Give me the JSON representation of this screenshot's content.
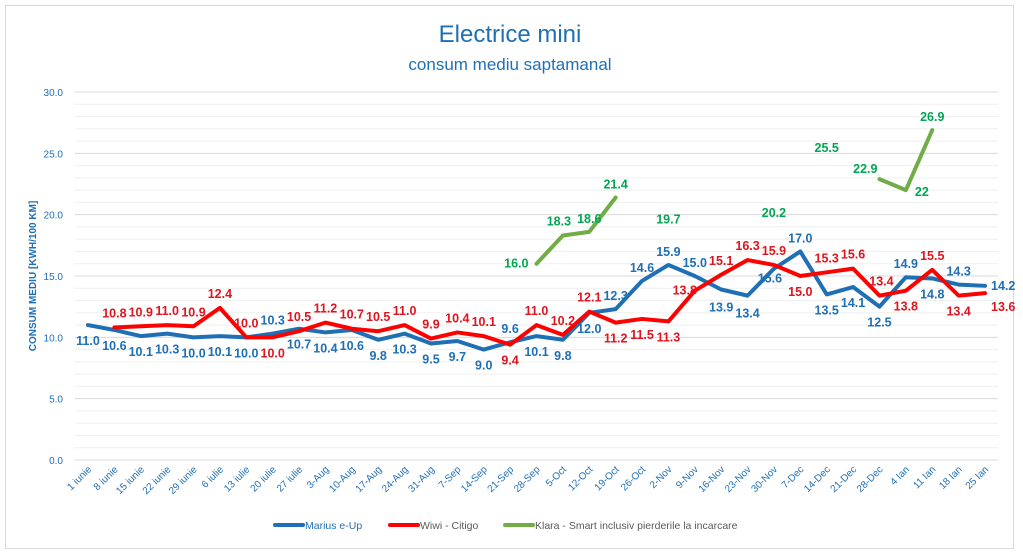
{
  "chart_data": {
    "type": "line",
    "title": "Electrice mini",
    "subtitle": "consum mediu saptamanal",
    "xlabel": "",
    "ylabel": "CONSUM MEDIU [KWH/100 KM]",
    "ylim": [
      0,
      30
    ],
    "yticks": [
      "0.0",
      "5.0",
      "10.0",
      "15.0",
      "20.0",
      "25.0",
      "30.0"
    ],
    "ytick_values": [
      0,
      5,
      10,
      15,
      20,
      25,
      30
    ],
    "grid": "major every 5, minor every 1",
    "legend_position": "bottom",
    "categories": [
      "1 iunie",
      "8 iunie",
      "15 iunie",
      "22 iunie",
      "29 iunie",
      "6 iulie",
      "13 iulie",
      "20 iulie",
      "27 iulie",
      "3-Aug",
      "10-Aug",
      "17-Aug",
      "24-Aug",
      "31-Aug",
      "7-Sep",
      "14-Sep",
      "21-Sep",
      "28-Sep",
      "5-Oct",
      "12-Oct",
      "19-Oct",
      "26-Oct",
      "2-Nov",
      "9-Nov",
      "16-Nov",
      "23-Nov",
      "30-Nov",
      "7-Dec",
      "14-Dec",
      "21-Dec",
      "28-Dec",
      "4 Ian",
      "11 Ian",
      "18 Ian",
      "25 Ian"
    ],
    "series": [
      {
        "name": "Marius e-Up",
        "color": "#1f6fb5",
        "label_color": "#1f6fb5",
        "values": [
          11.0,
          10.6,
          10.1,
          10.3,
          10.0,
          10.1,
          10.0,
          10.3,
          10.7,
          10.4,
          10.6,
          9.8,
          10.3,
          9.5,
          9.7,
          9.0,
          9.6,
          10.1,
          9.8,
          12.0,
          12.3,
          14.6,
          15.9,
          15.0,
          13.9,
          13.4,
          15.6,
          17.0,
          13.5,
          14.1,
          12.5,
          14.9,
          14.8,
          14.3,
          14.2
        ],
        "labels": [
          "11.0",
          "10.6",
          "10.1",
          "10.3",
          "10.0",
          "10.1",
          "10.0",
          "10.3",
          "10.7",
          "10.4",
          "10.6",
          "9.8",
          "10.3",
          "9.5",
          "9.7",
          "9.0",
          "9.6",
          "10.1",
          "9.8",
          "12.0",
          "12.3",
          "14.6",
          "15.9",
          "15.0",
          "13.9",
          "13.4",
          "15.6",
          "17.0",
          "13.5",
          "14.1",
          "12.5",
          "14.9",
          "14.8",
          "14.3",
          "14.2"
        ]
      },
      {
        "name": "Wiwi - Citigo",
        "color": "#ff0000",
        "label_color": "#e0141e",
        "values": [
          null,
          10.8,
          10.9,
          11.0,
          10.9,
          12.4,
          10.0,
          10.0,
          10.5,
          11.2,
          10.7,
          10.5,
          11.0,
          9.9,
          10.4,
          10.1,
          9.4,
          11.0,
          10.2,
          12.1,
          11.2,
          11.5,
          11.3,
          13.8,
          15.1,
          16.3,
          15.9,
          15.0,
          15.3,
          15.6,
          13.4,
          13.8,
          15.5,
          13.4,
          13.6
        ],
        "labels": [
          null,
          "10.8",
          "10.9",
          "11.0",
          "10.9",
          "12.4",
          "10.0",
          "10.0",
          "10.5",
          "11.2",
          "10.7",
          "10.5",
          "11.0",
          "9.9",
          "10.4",
          "10.1",
          "9.4",
          "11.0",
          "10.2",
          "12.1",
          "11.2",
          "11.5",
          "11.3",
          "13.8",
          "15.1",
          "16.3",
          "15.9",
          "15.0",
          "15.3",
          "15.6",
          "13.4",
          "13.8",
          "15.5",
          "13.4",
          "13.6"
        ]
      },
      {
        "name": "Klara - Smart inclusiv pierderile la incarcare",
        "color": "#70ad47",
        "label_color": "#00a651",
        "values": [
          null,
          null,
          null,
          null,
          null,
          null,
          null,
          null,
          null,
          null,
          null,
          null,
          null,
          null,
          null,
          null,
          null,
          16.0,
          18.3,
          18.6,
          21.4,
          null,
          19.7,
          null,
          null,
          null,
          20.2,
          null,
          25.5,
          null,
          22.9,
          22,
          26.9,
          null,
          null
        ],
        "labels": [
          null,
          null,
          null,
          null,
          null,
          null,
          null,
          null,
          null,
          null,
          null,
          null,
          null,
          null,
          null,
          null,
          null,
          "16.0",
          "18.3",
          "18.6",
          "21.4",
          null,
          "19.7",
          null,
          null,
          null,
          "20.2",
          null,
          "25.5",
          null,
          "22.9",
          "22",
          "26.9",
          null,
          null
        ]
      }
    ]
  }
}
